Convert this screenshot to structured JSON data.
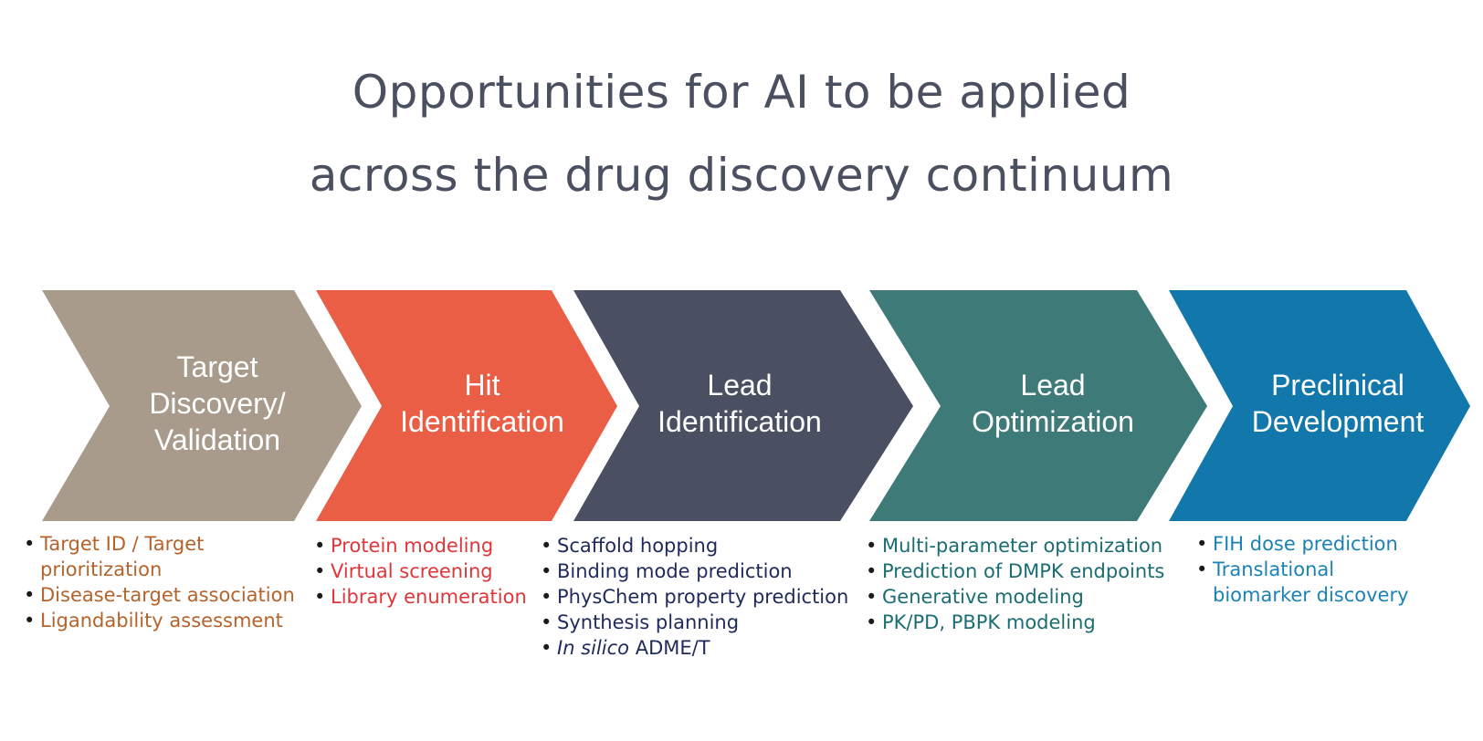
{
  "title": {
    "line1": "Opportunities for AI to be applied",
    "line2": "across the drug discovery continuum"
  },
  "colors": {
    "title": "#4b5060",
    "stage1": "#a99b8c",
    "stage2": "#ea5e45",
    "stage3": "#4a5062",
    "stage4": "#3e7a77",
    "stage5": "#1278ab",
    "bullets1": "#b5632b",
    "bullets2": "#e0363a",
    "bullets3": "#1f2a5c",
    "bullets4": "#1a6d72",
    "bullets5": "#1b82b5"
  },
  "stages": [
    {
      "label": "Target\nDiscovery/\nValidation",
      "bullets": [
        "Target ID / Target\nprioritization",
        "Disease-target association",
        "Ligandability assessment"
      ]
    },
    {
      "label": "Hit\nIdentification",
      "bullets": [
        "Protein modeling",
        "Virtual screening",
        "Library enumeration"
      ]
    },
    {
      "label": "Lead\nIdentification",
      "bullets": [
        "Scaffold hopping",
        "Binding mode prediction",
        "PhysChem property prediction",
        "Synthesis planning"
      ],
      "bullet_last_italic": "In silico",
      "bullet_last_rest": " ADME/T"
    },
    {
      "label": "Lead\nOptimization",
      "bullets": [
        "Multi-parameter optimization",
        "Prediction of DMPK endpoints",
        "Generative modeling",
        "PK/PD, PBPK modeling"
      ]
    },
    {
      "label": "Preclinical\nDevelopment",
      "bullets": [
        "FIH dose prediction",
        "Translational\nbiomarker discovery"
      ]
    }
  ]
}
